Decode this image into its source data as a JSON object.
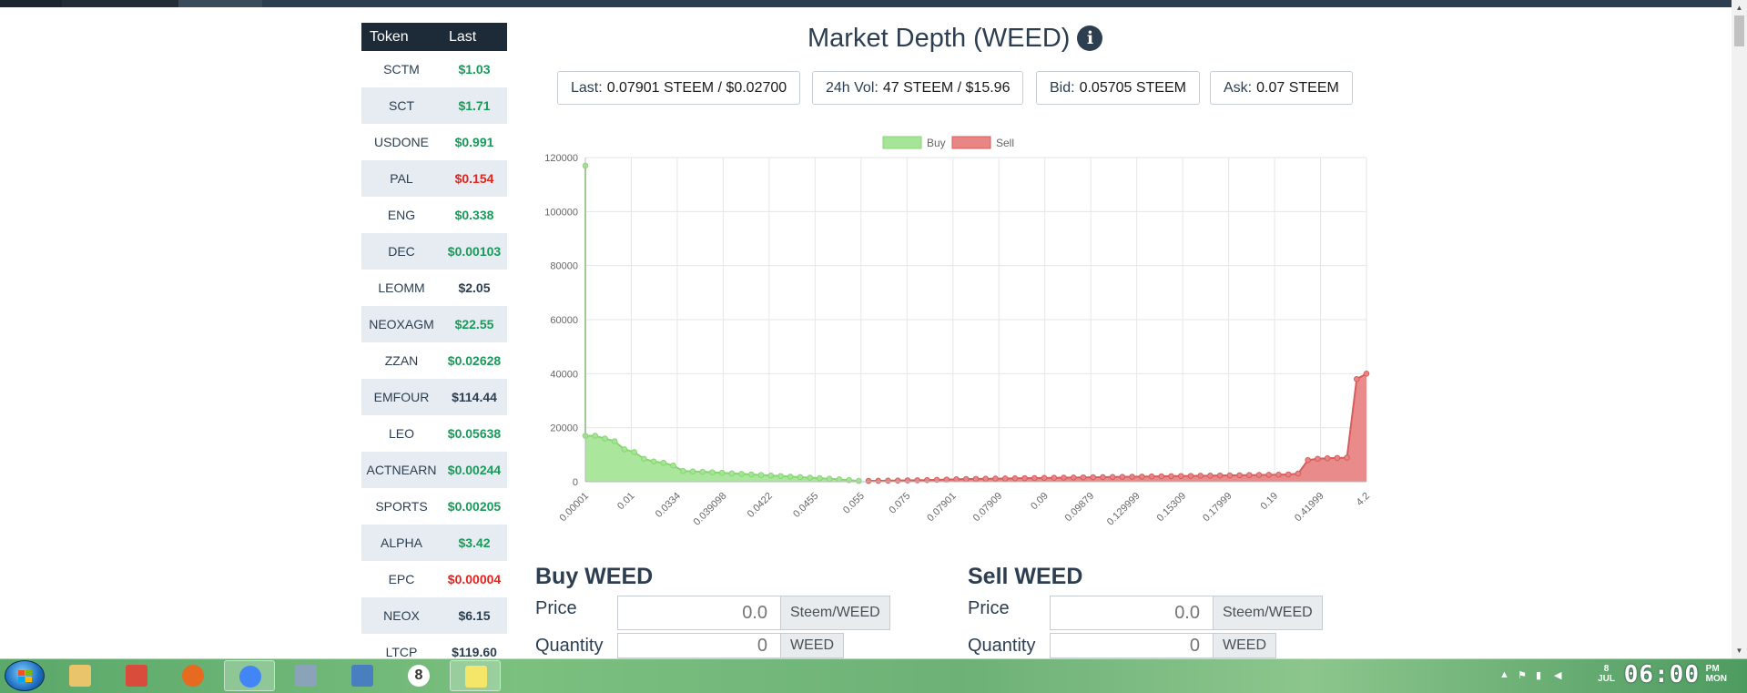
{
  "colors": {
    "positive": "#1a9a5a",
    "negative": "#e3231e",
    "neutral": "#2c3e50",
    "buy_fill": "#a6e598",
    "buy_line": "#87d672",
    "sell_fill": "#e88585",
    "sell_line": "#d75d5d"
  },
  "token_table": {
    "headers": [
      "Token",
      "Last"
    ],
    "rows": [
      {
        "token": "SCTM",
        "last": "$1.03",
        "trend": "positive"
      },
      {
        "token": "SCT",
        "last": "$1.71",
        "trend": "positive"
      },
      {
        "token": "USDONE",
        "last": "$0.991",
        "trend": "positive"
      },
      {
        "token": "PAL",
        "last": "$0.154",
        "trend": "negative"
      },
      {
        "token": "ENG",
        "last": "$0.338",
        "trend": "positive"
      },
      {
        "token": "DEC",
        "last": "$0.00103",
        "trend": "positive"
      },
      {
        "token": "LEOMM",
        "last": "$2.05",
        "trend": "neutral"
      },
      {
        "token": "NEOXAGM",
        "last": "$22.55",
        "trend": "positive"
      },
      {
        "token": "ZZAN",
        "last": "$0.02628",
        "trend": "positive"
      },
      {
        "token": "EMFOUR",
        "last": "$114.44",
        "trend": "neutral"
      },
      {
        "token": "LEO",
        "last": "$0.05638",
        "trend": "positive"
      },
      {
        "token": "ACTNEARN",
        "last": "$0.00244",
        "trend": "positive"
      },
      {
        "token": "SPORTS",
        "last": "$0.00205",
        "trend": "positive"
      },
      {
        "token": "ALPHA",
        "last": "$3.42",
        "trend": "positive"
      },
      {
        "token": "EPC",
        "last": "$0.00004",
        "trend": "negative"
      },
      {
        "token": "NEOX",
        "last": "$6.15",
        "trend": "neutral"
      },
      {
        "token": "LTCP",
        "last": "$119.60",
        "trend": "neutral"
      }
    ]
  },
  "header": {
    "title": "Market Depth (WEED)",
    "info_icon": "info-icon"
  },
  "stats": [
    {
      "label": "Last:",
      "value": "0.07901 STEEM / $0.02700"
    },
    {
      "label": "24h Vol:",
      "value": "47 STEEM / $15.96"
    },
    {
      "label": "Bid:",
      "value": "0.05705 STEEM"
    },
    {
      "label": "Ask:",
      "value": "0.07 STEEM"
    }
  ],
  "chart_data": {
    "type": "area",
    "title": "",
    "xlabel": "",
    "ylabel": "",
    "ylim": [
      0,
      120000
    ],
    "yticks": [
      0,
      20000,
      40000,
      60000,
      80000,
      100000,
      120000
    ],
    "xtick_labels": [
      "0.00001",
      "0.01",
      "0.0334",
      "0.039098",
      "0.0422",
      "0.0455",
      "0.055",
      "0.075",
      "0.07901",
      "0.07909",
      "0.09",
      "0.09879",
      "0.129999",
      "0.15309",
      "0.17999",
      "0.19",
      "0.41999",
      "4.2"
    ],
    "grid": true,
    "legend_position": "top-center",
    "series": [
      {
        "name": "Buy",
        "points": [
          [
            0,
            117000
          ],
          [
            0,
            17000
          ],
          [
            1,
            17000
          ],
          [
            2,
            16000
          ],
          [
            3,
            15000
          ],
          [
            4,
            12000
          ],
          [
            5,
            11000
          ],
          [
            6,
            8500
          ],
          [
            7,
            7500
          ],
          [
            8,
            7000
          ],
          [
            9,
            6000
          ],
          [
            10,
            4000
          ],
          [
            11,
            3800
          ],
          [
            12,
            3700
          ],
          [
            13,
            3500
          ],
          [
            14,
            3300
          ],
          [
            15,
            3100
          ],
          [
            16,
            2900
          ],
          [
            17,
            2700
          ],
          [
            18,
            2500
          ],
          [
            19,
            2300
          ],
          [
            20,
            2100
          ],
          [
            21,
            1900
          ],
          [
            22,
            1700
          ],
          [
            23,
            1500
          ],
          [
            24,
            1300
          ],
          [
            25,
            1100
          ],
          [
            26,
            900
          ],
          [
            27,
            600
          ],
          [
            28,
            300
          ]
        ]
      },
      {
        "name": "Sell",
        "points": [
          [
            29,
            300
          ],
          [
            30,
            350
          ],
          [
            31,
            400
          ],
          [
            32,
            450
          ],
          [
            33,
            500
          ],
          [
            34,
            550
          ],
          [
            35,
            600
          ],
          [
            36,
            700
          ],
          [
            37,
            800
          ],
          [
            38,
            900
          ],
          [
            39,
            1000
          ],
          [
            40,
            1050
          ],
          [
            41,
            1100
          ],
          [
            42,
            1150
          ],
          [
            43,
            1200
          ],
          [
            44,
            1250
          ],
          [
            45,
            1300
          ],
          [
            46,
            1350
          ],
          [
            47,
            1400
          ],
          [
            48,
            1450
          ],
          [
            49,
            1500
          ],
          [
            50,
            1550
          ],
          [
            51,
            1600
          ],
          [
            52,
            1650
          ],
          [
            53,
            1700
          ],
          [
            54,
            1750
          ],
          [
            55,
            1800
          ],
          [
            56,
            1850
          ],
          [
            57,
            1900
          ],
          [
            58,
            1950
          ],
          [
            59,
            2000
          ],
          [
            60,
            2050
          ],
          [
            61,
            2100
          ],
          [
            62,
            2150
          ],
          [
            63,
            2200
          ],
          [
            64,
            2250
          ],
          [
            65,
            2300
          ],
          [
            66,
            2350
          ],
          [
            67,
            2400
          ],
          [
            68,
            2450
          ],
          [
            69,
            2500
          ],
          [
            70,
            2550
          ],
          [
            71,
            2600
          ],
          [
            72,
            2700
          ],
          [
            73,
            3000
          ],
          [
            74,
            8000
          ],
          [
            75,
            8500
          ],
          [
            76,
            8700
          ],
          [
            77,
            8800
          ],
          [
            78,
            8900
          ],
          [
            79,
            38000
          ],
          [
            80,
            40000
          ]
        ]
      }
    ]
  },
  "buy_form": {
    "title": "Buy WEED",
    "price_label": "Price",
    "price_placeholder": "0.0",
    "price_unit": "Steem/WEED",
    "quantity_label": "Quantity",
    "quantity_placeholder": "0",
    "quantity_unit": "WEED"
  },
  "sell_form": {
    "title": "Sell WEED",
    "price_label": "Price",
    "price_placeholder": "0.0",
    "price_unit": "Steem/WEED",
    "quantity_label": "Quantity",
    "quantity_placeholder": "0",
    "quantity_unit": "WEED"
  },
  "taskbar": {
    "start_icon": "windows-start-icon",
    "apps": [
      {
        "icon": "file-explorer-icon"
      },
      {
        "icon": "ccleaner-icon"
      },
      {
        "icon": "firefox-icon"
      },
      {
        "icon": "chrome-icon",
        "active": true
      },
      {
        "icon": "calculator-icon"
      },
      {
        "icon": "image-viewer-icon"
      },
      {
        "icon": "badge-8-icon",
        "text": "8"
      },
      {
        "icon": "sticky-notes-icon",
        "active": true
      }
    ],
    "clock": {
      "time": "06:00",
      "ampm": "PM",
      "day": "MON",
      "month": "JUL",
      "date": "8"
    }
  }
}
